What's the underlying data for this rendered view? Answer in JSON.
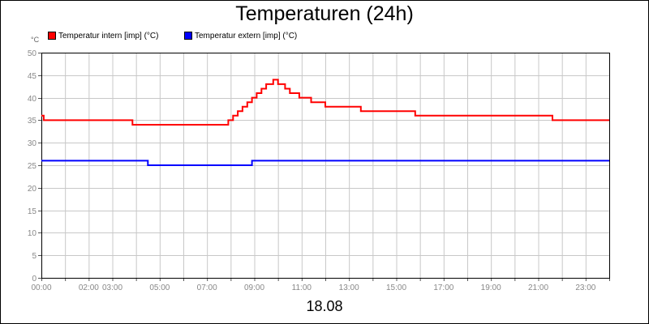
{
  "chart_data": {
    "type": "line",
    "title": "Temperaturen (24h)",
    "unit_label": "°C",
    "xlabel": "18.08",
    "ylim": [
      0,
      50
    ],
    "xlim": [
      0,
      24
    ],
    "yticks": [
      0,
      5,
      10,
      15,
      20,
      25,
      30,
      35,
      40,
      45,
      50
    ],
    "xticks": [
      {
        "value": 0,
        "label": "00:00"
      },
      {
        "value": 2,
        "label": "02:00"
      },
      {
        "value": 3,
        "label": "03:00"
      },
      {
        "value": 5,
        "label": "05:00"
      },
      {
        "value": 7,
        "label": "07:00"
      },
      {
        "value": 9,
        "label": "09:00"
      },
      {
        "value": 11,
        "label": "11:00"
      },
      {
        "value": 13,
        "label": "13:00"
      },
      {
        "value": 15,
        "label": "15:00"
      },
      {
        "value": 17,
        "label": "17:00"
      },
      {
        "value": 19,
        "label": "19:00"
      },
      {
        "value": 21,
        "label": "21:00"
      },
      {
        "value": 23,
        "label": "23:00"
      }
    ],
    "grid": true,
    "legend_position": "top-left",
    "series": [
      {
        "name": "Temperatur intern [imp] (°C)",
        "color": "#ff0000",
        "points": [
          [
            0,
            36
          ],
          [
            0.1,
            35
          ],
          [
            3.8,
            35
          ],
          [
            3.85,
            34
          ],
          [
            7.8,
            34
          ],
          [
            7.9,
            35
          ],
          [
            8.1,
            36
          ],
          [
            8.3,
            37
          ],
          [
            8.5,
            38
          ],
          [
            8.7,
            39
          ],
          [
            8.9,
            40
          ],
          [
            9.1,
            41
          ],
          [
            9.3,
            42
          ],
          [
            9.5,
            43
          ],
          [
            9.8,
            44
          ],
          [
            10.0,
            43
          ],
          [
            10.3,
            42
          ],
          [
            10.5,
            41
          ],
          [
            10.9,
            40
          ],
          [
            11.4,
            39
          ],
          [
            12.0,
            38
          ],
          [
            13.5,
            37
          ],
          [
            15.8,
            36
          ],
          [
            21.6,
            35
          ],
          [
            24,
            35
          ]
        ]
      },
      {
        "name": "Temperatur extern [imp] (°C)",
        "color": "#0000ff",
        "points": [
          [
            0,
            26
          ],
          [
            4.4,
            26
          ],
          [
            4.5,
            25
          ],
          [
            8.8,
            25
          ],
          [
            8.9,
            26
          ],
          [
            24,
            26
          ]
        ]
      }
    ]
  }
}
